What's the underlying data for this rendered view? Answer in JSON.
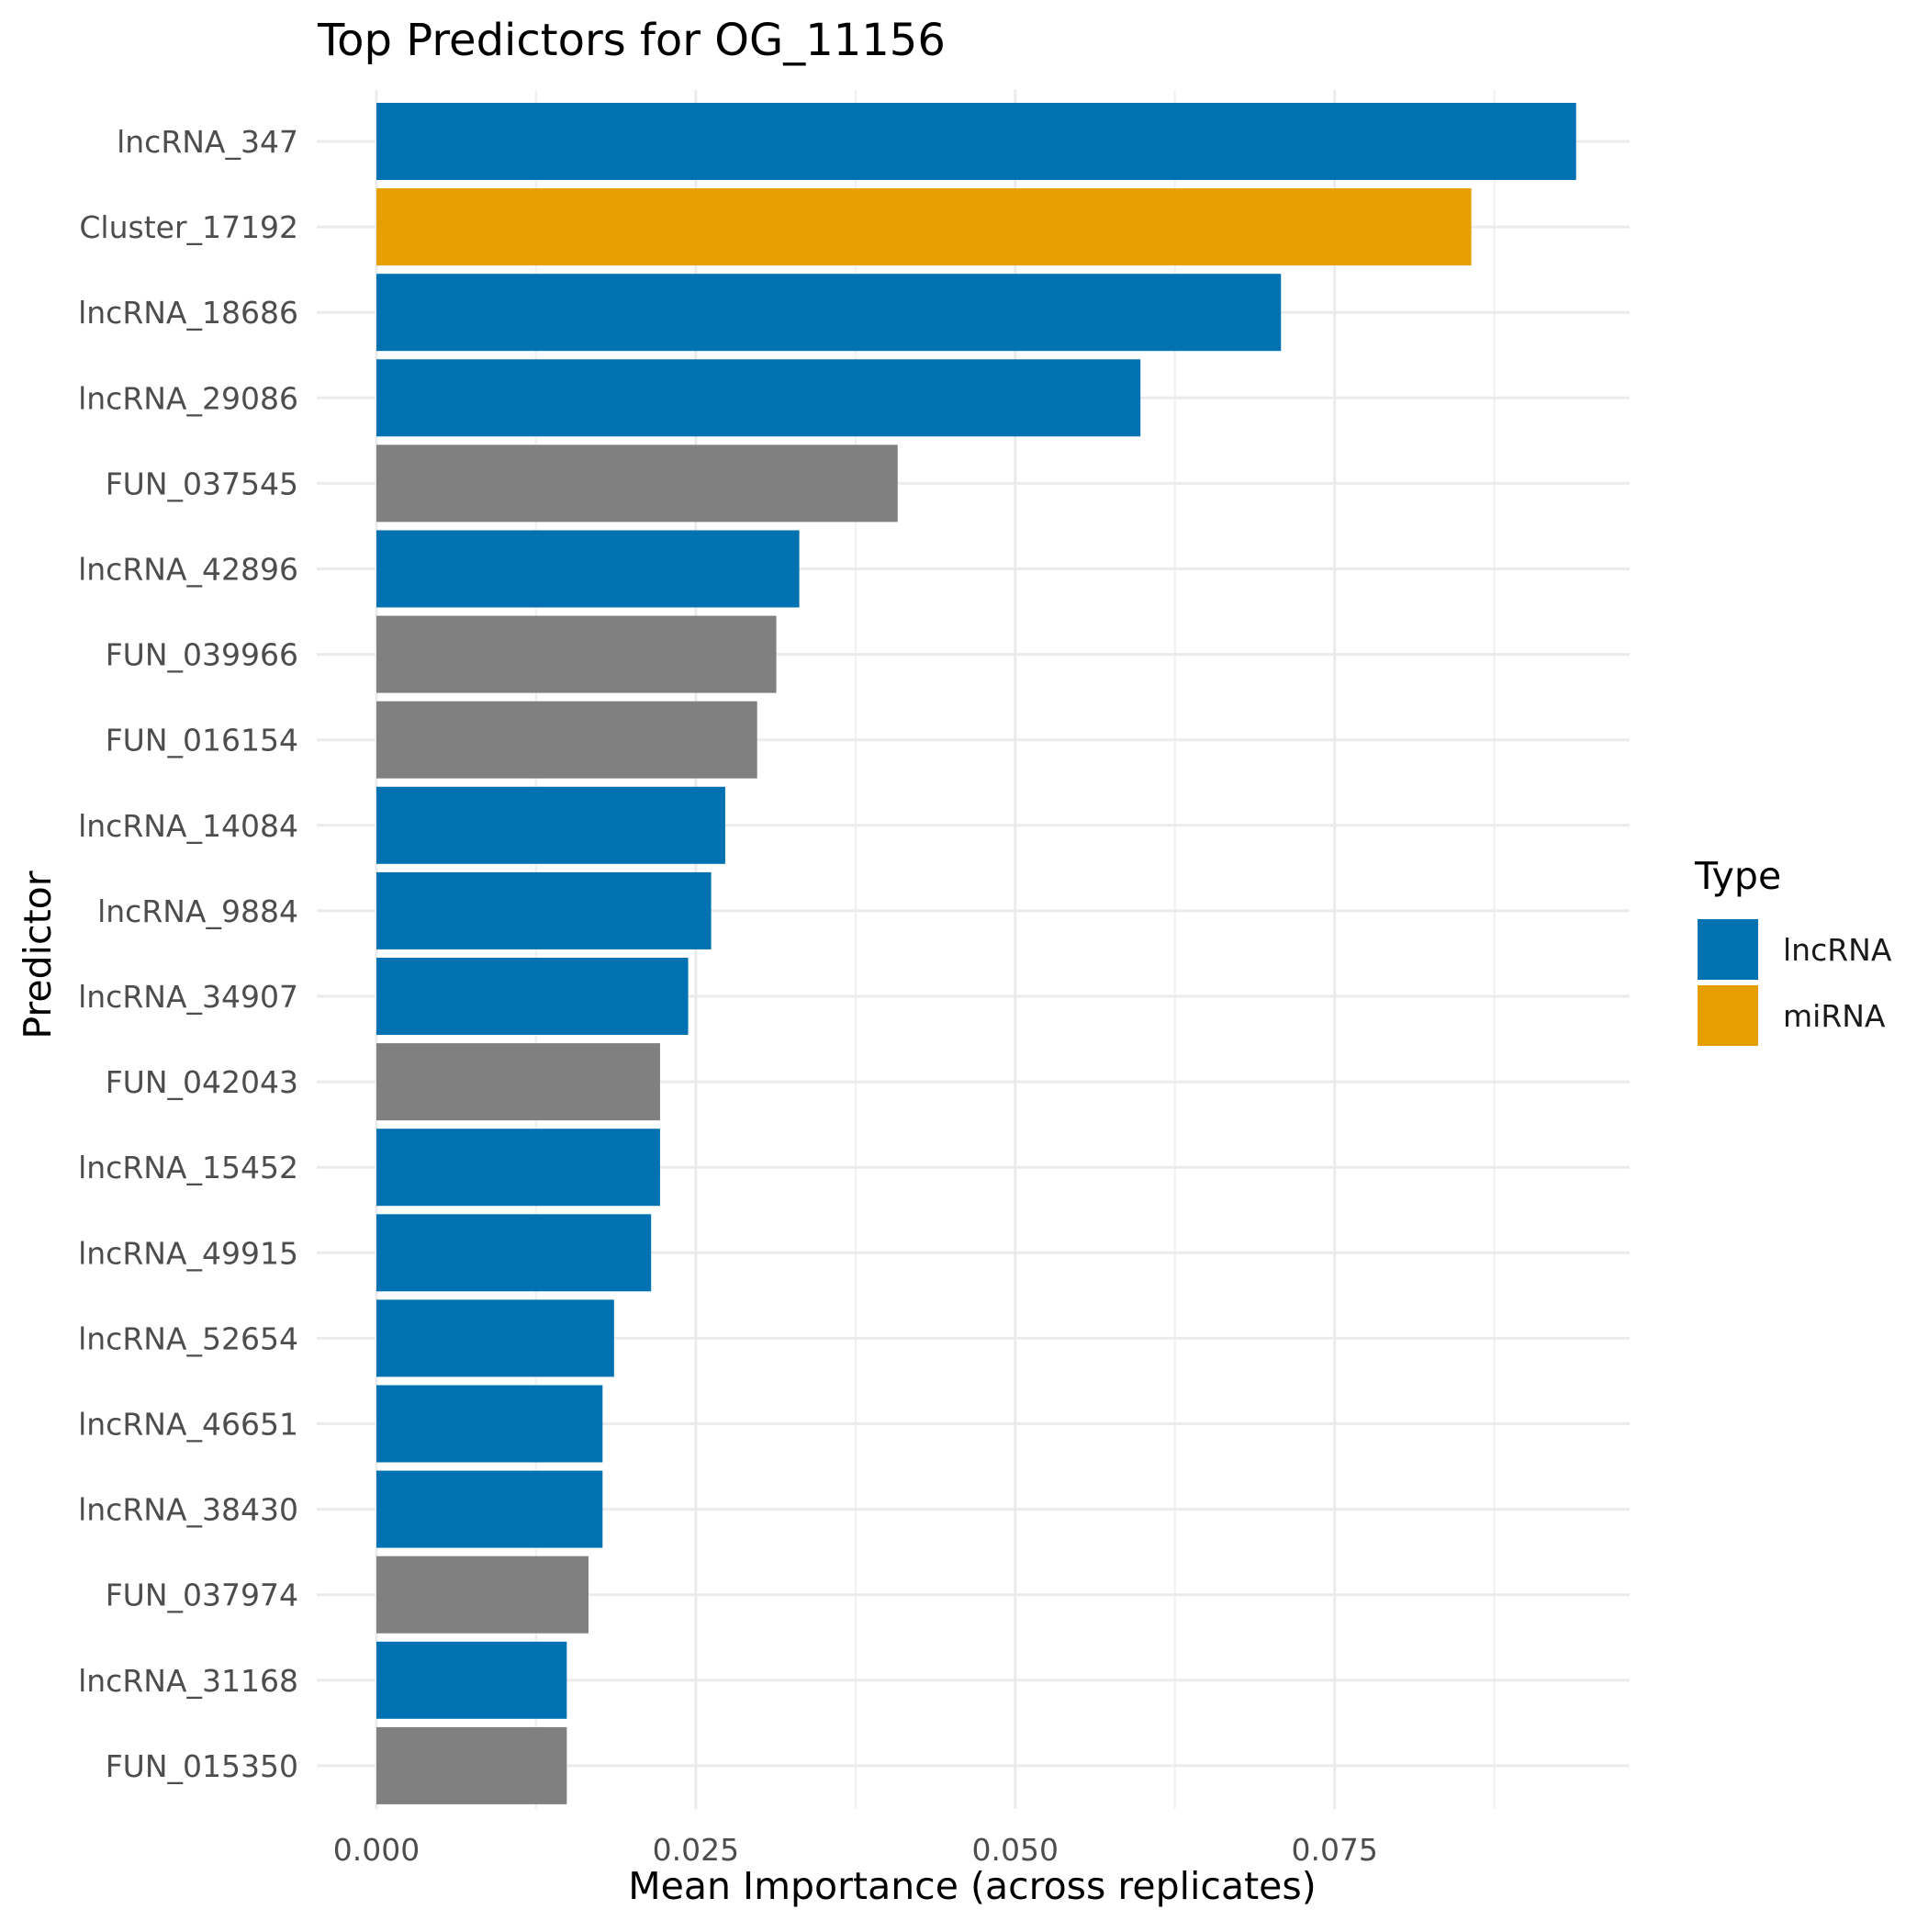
{
  "chart_data": {
    "type": "bar",
    "orientation": "horizontal",
    "title": "Top Predictors for OG_11156",
    "xlabel": "Mean Importance (across replicates)",
    "ylabel": "Predictor",
    "xlim": [
      0,
      0.0985
    ],
    "x_ticks": [
      0.0,
      0.025,
      0.05,
      0.075
    ],
    "x_tick_labels": [
      "0.000",
      "0.025",
      "0.050",
      "0.075"
    ],
    "grid": true,
    "legend": {
      "title": "Type",
      "placement": "right",
      "entries": [
        {
          "label": "lncRNA",
          "color": "#0072B2"
        },
        {
          "label": "miRNA",
          "color": "#E69F00"
        }
      ]
    },
    "type_colors": {
      "lncRNA": "#0072B2",
      "miRNA": "#E69F00",
      "other": "#808080"
    },
    "categories": [
      "lncRNA_347",
      "Cluster_17192",
      "lncRNA_18686",
      "lncRNA_29086",
      "FUN_037545",
      "lncRNA_42896",
      "FUN_039966",
      "FUN_016154",
      "lncRNA_14084",
      "lncRNA_9884",
      "lncRNA_34907",
      "FUN_042043",
      "lncRNA_15452",
      "lncRNA_49915",
      "lncRNA_52654",
      "lncRNA_46651",
      "lncRNA_38430",
      "FUN_037974",
      "lncRNA_31168",
      "FUN_015350"
    ],
    "values": [
      0.0939,
      0.0857,
      0.0708,
      0.0598,
      0.0408,
      0.0331,
      0.0313,
      0.0298,
      0.0273,
      0.0262,
      0.0244,
      0.0222,
      0.0222,
      0.0215,
      0.0186,
      0.0177,
      0.0177,
      0.0166,
      0.0149,
      0.0149
    ],
    "bar_types": [
      "lncRNA",
      "miRNA",
      "lncRNA",
      "lncRNA",
      "other",
      "lncRNA",
      "other",
      "other",
      "lncRNA",
      "lncRNA",
      "lncRNA",
      "other",
      "lncRNA",
      "lncRNA",
      "lncRNA",
      "lncRNA",
      "lncRNA",
      "other",
      "lncRNA",
      "other"
    ]
  }
}
